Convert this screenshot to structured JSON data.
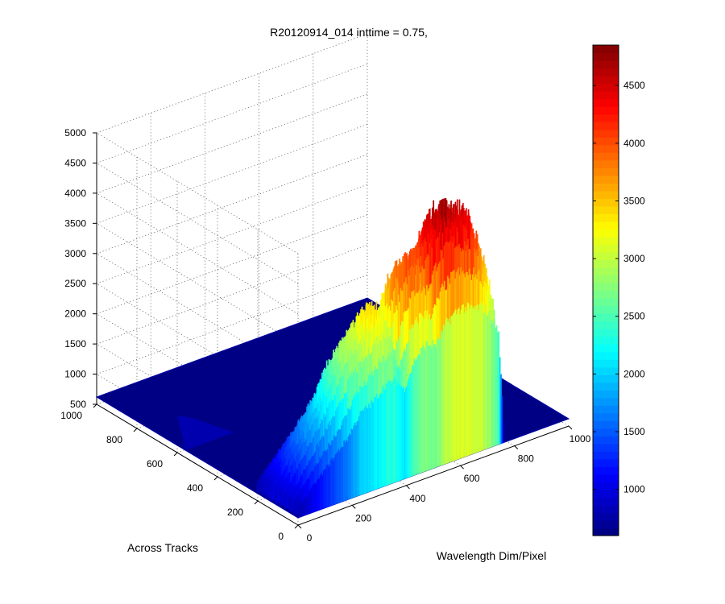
{
  "chart_data": {
    "type": "surface",
    "title": "R20120914_014 inttime = 0.75,",
    "xlabel": "Wavelength Dim/Pixel",
    "ylabel": "Across Tracks",
    "zlabel": "",
    "x_ticks": [
      "0",
      "200",
      "400",
      "600",
      "800",
      "1000"
    ],
    "y_ticks": [
      "0",
      "200",
      "400",
      "600",
      "800",
      "1000"
    ],
    "z_ticks": [
      "500",
      "1000",
      "1500",
      "2000",
      "2500",
      "3000",
      "3500",
      "4000",
      "4500",
      "5000"
    ],
    "xlim": [
      0,
      1000
    ],
    "ylim": [
      0,
      1000
    ],
    "zlim": [
      500,
      5000
    ],
    "grid": true,
    "colormap": "jet",
    "colorbar": {
      "ticks": [
        "1000",
        "1500",
        "2000",
        "2500",
        "3000",
        "3500",
        "4000",
        "4500"
      ],
      "clim": [
        600,
        4850
      ]
    },
    "background_level": 620,
    "illuminated_across_track_range": [
      0,
      230
    ],
    "wavelength_range": [
      0,
      1000
    ],
    "peak_profile": [
      {
        "x": 0,
        "z": 900
      },
      {
        "x": 60,
        "z": 1350
      },
      {
        "x": 120,
        "z": 1800
      },
      {
        "x": 180,
        "z": 2250
      },
      {
        "x": 230,
        "z": 2800
      },
      {
        "x": 270,
        "z": 2950
      },
      {
        "x": 320,
        "z": 3300
      },
      {
        "x": 360,
        "z": 3350
      },
      {
        "x": 390,
        "z": 3000
      },
      {
        "x": 430,
        "z": 3700
      },
      {
        "x": 470,
        "z": 4000
      },
      {
        "x": 510,
        "z": 3900
      },
      {
        "x": 550,
        "z": 4400
      },
      {
        "x": 600,
        "z": 4650
      },
      {
        "x": 640,
        "z": 4500
      },
      {
        "x": 680,
        "z": 4450
      },
      {
        "x": 710,
        "z": 4150
      },
      {
        "x": 740,
        "z": 3600
      },
      {
        "x": 760,
        "z": 650
      },
      {
        "x": 1000,
        "z": 620
      }
    ]
  }
}
